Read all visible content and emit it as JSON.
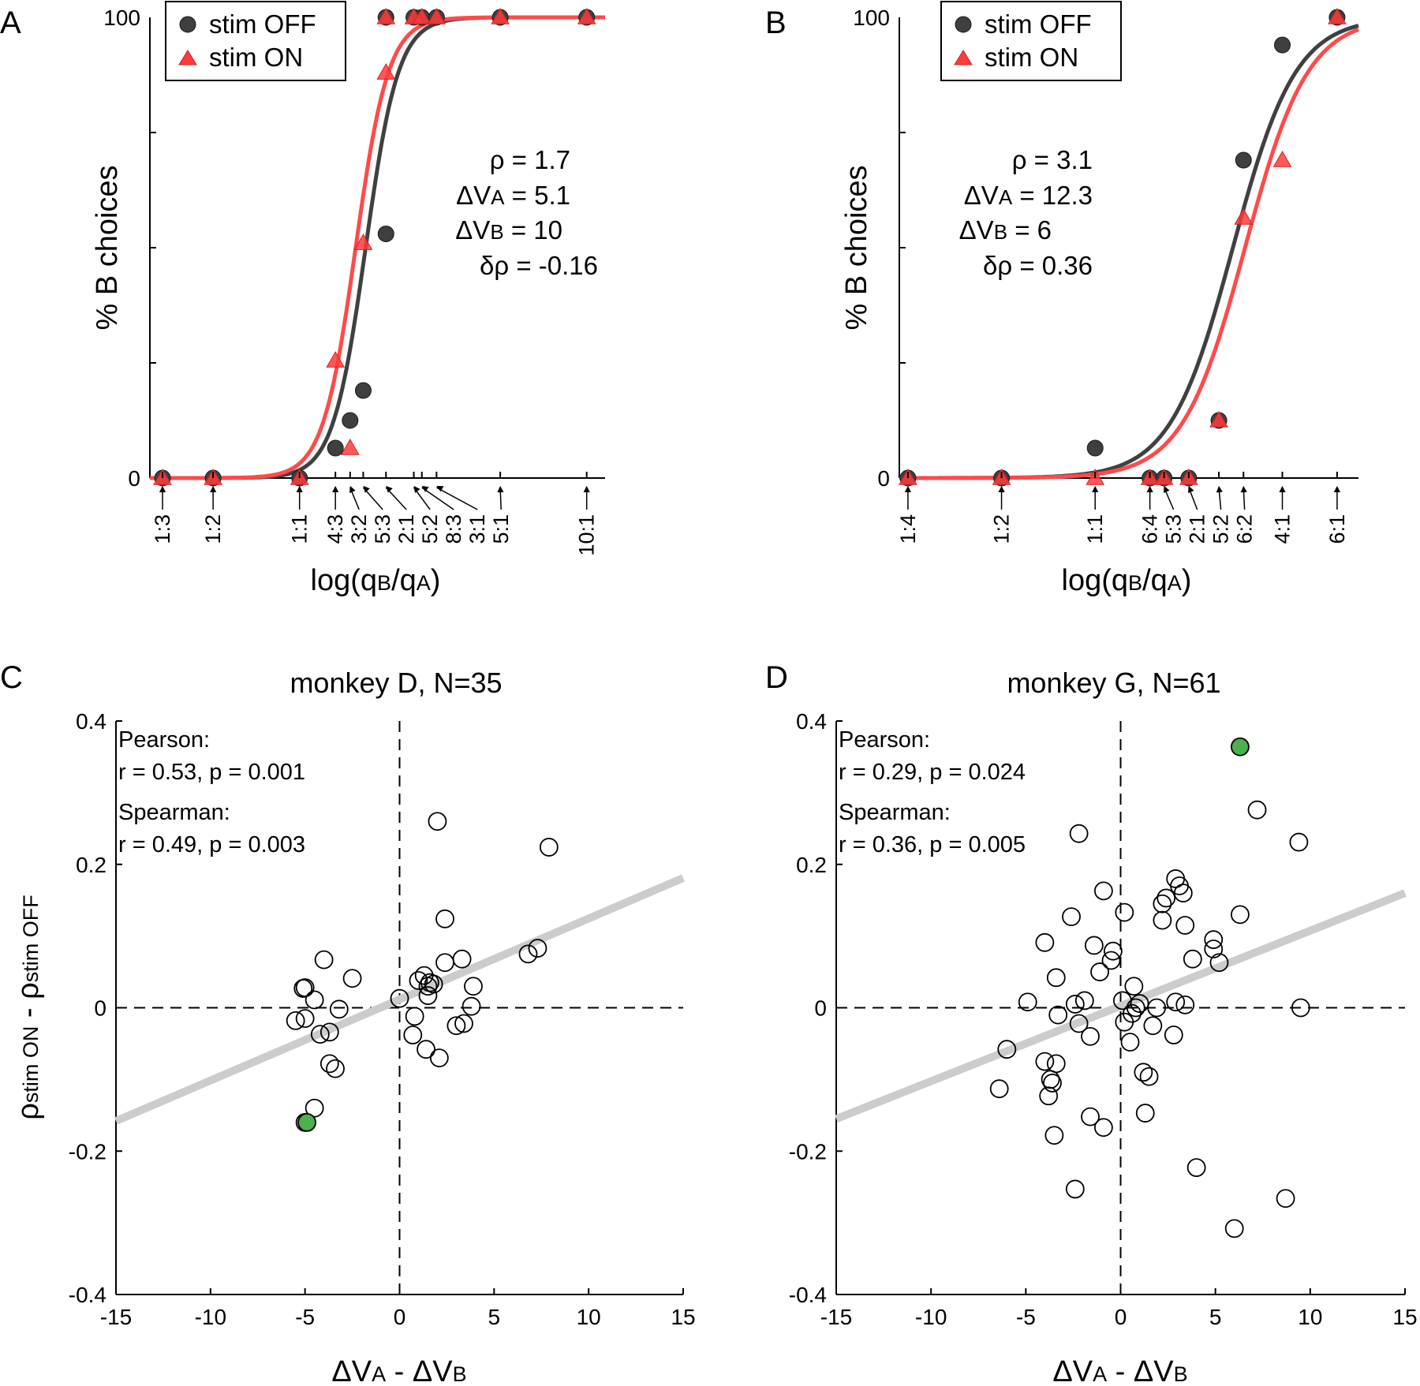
{
  "figure": {
    "colors": {
      "stim_off": "#3f3f3f",
      "stim_on": "#ff3b3b",
      "fit_off": "#404040",
      "fit_on": "#ff4a4a",
      "regression": "#cccccc",
      "highlight": "#4caf50",
      "axis": "#000000"
    }
  },
  "chart_data": [
    {
      "panel": "A",
      "type": "line",
      "ylabel": "% B choices",
      "xlabel_parts": [
        "log(q",
        "B",
        "/q",
        "A",
        ")"
      ],
      "y_tick_labels": [
        "0",
        "100"
      ],
      "xlim": [
        -1.2,
        2.45
      ],
      "ylim": [
        0,
        100
      ],
      "ratio_ticks": [
        {
          "label": "1:3",
          "x": -1.0986
        },
        {
          "label": "1:2",
          "x": -0.6931
        },
        {
          "label": "1:1",
          "x": 0.0
        },
        {
          "label": "4:3",
          "x": 0.2877
        },
        {
          "label": "3:2",
          "x": 0.4055
        },
        {
          "label": "5:3",
          "x": 0.5108
        },
        {
          "label": "2:1",
          "x": 0.6931
        },
        {
          "label": "5:2",
          "x": 0.9163
        },
        {
          "label": "8:3",
          "x": 0.9808
        },
        {
          "label": "3:1",
          "x": 1.0986
        },
        {
          "label": "5:1",
          "x": 1.6094
        },
        {
          "label": "10:1",
          "x": 2.3026
        }
      ],
      "legend": [
        "stim OFF",
        "stim ON"
      ],
      "series": [
        {
          "name": "stim OFF",
          "marker": "circle",
          "points": [
            [
              -1.0986,
              0
            ],
            [
              -0.6931,
              0
            ],
            [
              0.0,
              0
            ],
            [
              0.2877,
              6.5
            ],
            [
              0.4055,
              12.5
            ],
            [
              0.5108,
              19
            ],
            [
              0.6931,
              53
            ],
            [
              0.6931,
              100
            ],
            [
              0.9163,
              100
            ],
            [
              0.9808,
              100
            ],
            [
              1.0986,
              100
            ],
            [
              1.6094,
              100
            ],
            [
              2.3026,
              100
            ]
          ],
          "fit": {
            "x50": 0.53,
            "slope": 7.6
          }
        },
        {
          "name": "stim ON",
          "marker": "triangle",
          "points": [
            [
              -1.0986,
              0
            ],
            [
              -0.6931,
              0
            ],
            [
              0.0,
              0
            ],
            [
              0.2877,
              25.5
            ],
            [
              0.4055,
              6.5
            ],
            [
              0.5108,
              51
            ],
            [
              0.6931,
              88
            ],
            [
              0.6931,
              100
            ],
            [
              0.9163,
              100
            ],
            [
              0.9808,
              100
            ],
            [
              1.0986,
              100
            ],
            [
              1.6094,
              100
            ],
            [
              2.3026,
              100
            ]
          ],
          "fit": {
            "x50": 0.45,
            "slope": 7.6
          }
        }
      ],
      "stats": [
        {
          "sym": "ρ",
          "sub": "",
          "value": " = 1.7"
        },
        {
          "sym": "ΔV",
          "sub": "A",
          "value": " = 5.1"
        },
        {
          "sym": "ΔV",
          "sub": "B",
          "value": " = 10"
        },
        {
          "sym": "δρ",
          "sub": "",
          "value": " = -0.16"
        }
      ]
    },
    {
      "panel": "B",
      "type": "line",
      "ylabel": "% B choices",
      "xlabel_parts": [
        "log(q",
        "B",
        "/q",
        "A",
        ")"
      ],
      "y_tick_labels": [
        "0",
        "100"
      ],
      "xlim": [
        -1.45,
        1.95
      ],
      "ylim": [
        0,
        100
      ],
      "ratio_ticks": [
        {
          "label": "1:4",
          "x": -1.3863
        },
        {
          "label": "1:2",
          "x": -0.6931
        },
        {
          "label": "1:1",
          "x": 0.0
        },
        {
          "label": "6:4",
          "x": 0.4055
        },
        {
          "label": "5:3",
          "x": 0.5108
        },
        {
          "label": "2:1",
          "x": 0.6931
        },
        {
          "label": "5:2",
          "x": 0.9163
        },
        {
          "label": "6:2",
          "x": 1.0986
        },
        {
          "label": "4:1",
          "x": 1.3863
        },
        {
          "label": "6:1",
          "x": 1.7918
        }
      ],
      "legend": [
        "stim OFF",
        "stim ON"
      ],
      "series": [
        {
          "name": "stim OFF",
          "marker": "circle",
          "points": [
            [
              -1.3863,
              0
            ],
            [
              -0.6931,
              0
            ],
            [
              0.0,
              6.5
            ],
            [
              0.4055,
              0
            ],
            [
              0.5108,
              0
            ],
            [
              0.6931,
              0
            ],
            [
              0.9163,
              12.5
            ],
            [
              1.0986,
              69
            ],
            [
              1.3863,
              94
            ],
            [
              1.7918,
              100
            ]
          ],
          "fit": {
            "x50": 1.02,
            "slope": 4.3
          }
        },
        {
          "name": "stim ON",
          "marker": "triangle",
          "points": [
            [
              -1.3863,
              0
            ],
            [
              -0.6931,
              0
            ],
            [
              0.0,
              0
            ],
            [
              0.4055,
              0
            ],
            [
              0.5108,
              0
            ],
            [
              0.6931,
              0
            ],
            [
              0.9163,
              12.5
            ],
            [
              1.0986,
              56.5
            ],
            [
              1.3863,
              69
            ],
            [
              1.7918,
              100
            ]
          ],
          "fit": {
            "x50": 1.11,
            "slope": 4.3
          }
        }
      ],
      "stats": [
        {
          "sym": "ρ",
          "sub": "",
          "value": " = 3.1"
        },
        {
          "sym": "ΔV",
          "sub": "A",
          "value": " = 12.3"
        },
        {
          "sym": "ΔV",
          "sub": "B",
          "value": " = 6"
        },
        {
          "sym": "δρ",
          "sub": "",
          "value": " = 0.36"
        }
      ]
    },
    {
      "panel": "C",
      "type": "scatter",
      "title": "monkey D, N=35",
      "xlabel_parts": [
        "ΔV",
        "A",
        " - ΔV",
        "B"
      ],
      "ylabel_parts": [
        "ρ",
        "stim ON",
        " - ρ",
        "stim OFF"
      ],
      "xlim": [
        -15,
        15
      ],
      "ylim": [
        -0.4,
        0.4
      ],
      "x_ticks": [
        -15,
        -10,
        -5,
        0,
        5,
        10,
        15
      ],
      "x_tick_labels": [
        "-15",
        "-10",
        "-5",
        "0",
        "5",
        "10",
        "15"
      ],
      "y_ticks": [
        -0.4,
        -0.2,
        0,
        0.2,
        0.4
      ],
      "y_tick_labels": [
        "-0.4",
        "-0.2",
        "0",
        "0.2",
        "0.4"
      ],
      "fit_line": {
        "slope": 0.0113,
        "intercept": 0.0115
      },
      "correlations": [
        "Pearson:",
        "r = 0.53, p = 0.001",
        "Spearman:",
        "r = 0.49, p = 0.003"
      ],
      "points": [
        [
          -5.1,
          0.027
        ],
        [
          -5.0,
          0.028
        ],
        [
          -4.0,
          0.067
        ],
        [
          -2.5,
          0.041
        ],
        [
          -4.5,
          0.011
        ],
        [
          -5.0,
          -0.015
        ],
        [
          -5.5,
          -0.018
        ],
        [
          -4.2,
          -0.037
        ],
        [
          -3.7,
          -0.034
        ],
        [
          -3.2,
          -0.002
        ],
        [
          -3.7,
          -0.078
        ],
        [
          -3.4,
          -0.085
        ],
        [
          -4.5,
          -0.14
        ],
        [
          -5.0,
          -0.16
        ],
        [
          0.0,
          0.013
        ],
        [
          0.8,
          -0.012
        ],
        [
          0.7,
          -0.038
        ],
        [
          1.0,
          0.038
        ],
        [
          1.3,
          0.045
        ],
        [
          1.5,
          0.03
        ],
        [
          1.6,
          0.035
        ],
        [
          1.8,
          0.033
        ],
        [
          1.5,
          0.017
        ],
        [
          1.4,
          -0.058
        ],
        [
          2.1,
          -0.07
        ],
        [
          2.0,
          0.26
        ],
        [
          2.4,
          0.124
        ],
        [
          2.4,
          0.063
        ],
        [
          3.3,
          0.068
        ],
        [
          3.9,
          0.03
        ],
        [
          3.8,
          0.002
        ],
        [
          3.4,
          -0.022
        ],
        [
          3.0,
          -0.025
        ],
        [
          6.8,
          0.075
        ],
        [
          7.3,
          0.083
        ],
        [
          7.9,
          0.224
        ]
      ],
      "highlight_points": [
        [
          -4.9,
          -0.16
        ]
      ]
    },
    {
      "panel": "D",
      "type": "scatter",
      "title": "monkey G, N=61",
      "xlabel_parts": [
        "ΔV",
        "A",
        " - ΔV",
        "B"
      ],
      "xlim": [
        -15,
        15
      ],
      "ylim": [
        -0.4,
        0.4
      ],
      "x_ticks": [
        -15,
        -10,
        -5,
        0,
        5,
        10,
        15
      ],
      "x_tick_labels": [
        "-15",
        "-10",
        "-5",
        "0",
        "5",
        "10",
        "15"
      ],
      "y_ticks": [
        -0.4,
        -0.2,
        0,
        0.2,
        0.4
      ],
      "y_tick_labels": [
        "-0.4",
        "-0.2",
        "0",
        "0.2",
        "0.4"
      ],
      "fit_line": {
        "slope": 0.0105,
        "intercept": 0.0025
      },
      "correlations": [
        "Pearson:",
        "r = 0.29, p = 0.024",
        "Spearman:",
        "r = 0.36, p = 0.005"
      ],
      "points": [
        [
          -2.2,
          0.243
        ],
        [
          -0.9,
          0.163
        ],
        [
          0.2,
          0.133
        ],
        [
          -2.6,
          0.127
        ],
        [
          -1.4,
          0.087
        ],
        [
          -4.0,
          0.091
        ],
        [
          -0.5,
          0.066
        ],
        [
          -0.4,
          0.079
        ],
        [
          -1.1,
          0.05
        ],
        [
          -3.4,
          0.042
        ],
        [
          -4.9,
          0.008
        ],
        [
          -2.4,
          0.005
        ],
        [
          -1.9,
          0.01
        ],
        [
          -3.3,
          -0.01
        ],
        [
          0.1,
          0.01
        ],
        [
          0.7,
          0.03
        ],
        [
          0.6,
          -0.008
        ],
        [
          1.0,
          0.006
        ],
        [
          0.2,
          -0.02
        ],
        [
          -2.2,
          -0.022
        ],
        [
          -1.6,
          -0.04
        ],
        [
          0.5,
          -0.048
        ],
        [
          1.2,
          -0.09
        ],
        [
          1.5,
          -0.096
        ],
        [
          1.7,
          -0.025
        ],
        [
          2.8,
          -0.038
        ],
        [
          2.9,
          0.008
        ],
        [
          3.4,
          0.004
        ],
        [
          -6.0,
          -0.058
        ],
        [
          -4.0,
          -0.075
        ],
        [
          -3.4,
          -0.078
        ],
        [
          -3.7,
          -0.1
        ],
        [
          -3.6,
          -0.105
        ],
        [
          -3.8,
          -0.123
        ],
        [
          -6.4,
          -0.113
        ],
        [
          -3.5,
          -0.178
        ],
        [
          -1.6,
          -0.152
        ],
        [
          -0.9,
          -0.167
        ],
        [
          1.3,
          -0.147
        ],
        [
          -2.4,
          -0.253
        ],
        [
          2.2,
          0.122
        ],
        [
          2.2,
          0.145
        ],
        [
          2.4,
          0.153
        ],
        [
          2.9,
          0.18
        ],
        [
          3.1,
          0.17
        ],
        [
          3.3,
          0.16
        ],
        [
          3.4,
          0.115
        ],
        [
          3.8,
          0.068
        ],
        [
          4.9,
          0.095
        ],
        [
          4.9,
          0.082
        ],
        [
          5.2,
          0.063
        ],
        [
          6.3,
          0.13
        ],
        [
          7.2,
          0.276
        ],
        [
          9.4,
          0.231
        ],
        [
          9.5,
          0.0
        ],
        [
          4.0,
          -0.223
        ],
        [
          8.7,
          -0.266
        ],
        [
          6.0,
          -0.308
        ],
        [
          1.9,
          0.0
        ],
        [
          0.8,
          0.0
        ]
      ],
      "highlight_points": [
        [
          6.3,
          0.364
        ]
      ]
    }
  ]
}
